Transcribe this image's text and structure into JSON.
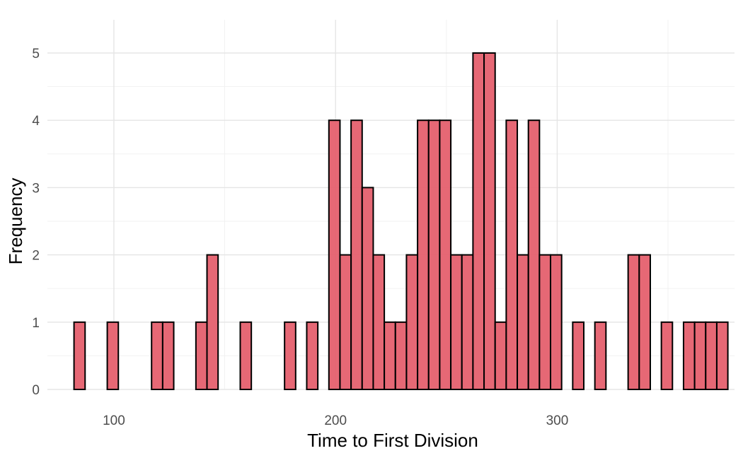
{
  "chart_data": {
    "type": "bar",
    "subtype": "histogram",
    "title": "",
    "xlabel": "Time to First Division",
    "ylabel": "Frequency",
    "xlim": [
      70,
      380
    ],
    "ylim": [
      0,
      5
    ],
    "x_ticks": [
      100,
      200,
      300
    ],
    "y_ticks": [
      0,
      1,
      2,
      3,
      4,
      5
    ],
    "bin_start": 82,
    "bin_width": 5,
    "bins": [
      {
        "x": 84.5,
        "count": 1
      },
      {
        "x": 89.5,
        "count": 0
      },
      {
        "x": 94.5,
        "count": 0
      },
      {
        "x": 99.5,
        "count": 1
      },
      {
        "x": 104.5,
        "count": 0
      },
      {
        "x": 109.5,
        "count": 0
      },
      {
        "x": 114.5,
        "count": 0
      },
      {
        "x": 119.5,
        "count": 1
      },
      {
        "x": 124.5,
        "count": 1
      },
      {
        "x": 129.5,
        "count": 0
      },
      {
        "x": 134.5,
        "count": 0
      },
      {
        "x": 139.5,
        "count": 1
      },
      {
        "x": 144.5,
        "count": 2
      },
      {
        "x": 149.5,
        "count": 0
      },
      {
        "x": 154.5,
        "count": 0
      },
      {
        "x": 159.5,
        "count": 1
      },
      {
        "x": 164.5,
        "count": 0
      },
      {
        "x": 169.5,
        "count": 0
      },
      {
        "x": 174.5,
        "count": 0
      },
      {
        "x": 179.5,
        "count": 1
      },
      {
        "x": 184.5,
        "count": 0
      },
      {
        "x": 189.5,
        "count": 1
      },
      {
        "x": 194.5,
        "count": 0
      },
      {
        "x": 199.5,
        "count": 4
      },
      {
        "x": 204.5,
        "count": 2
      },
      {
        "x": 209.5,
        "count": 4
      },
      {
        "x": 214.5,
        "count": 3
      },
      {
        "x": 219.5,
        "count": 2
      },
      {
        "x": 224.5,
        "count": 1
      },
      {
        "x": 229.5,
        "count": 1
      },
      {
        "x": 234.5,
        "count": 2
      },
      {
        "x": 239.5,
        "count": 4
      },
      {
        "x": 244.5,
        "count": 4
      },
      {
        "x": 249.5,
        "count": 4
      },
      {
        "x": 254.5,
        "count": 2
      },
      {
        "x": 259.5,
        "count": 2
      },
      {
        "x": 264.5,
        "count": 5
      },
      {
        "x": 269.5,
        "count": 5
      },
      {
        "x": 274.5,
        "count": 1
      },
      {
        "x": 279.5,
        "count": 4
      },
      {
        "x": 284.5,
        "count": 2
      },
      {
        "x": 289.5,
        "count": 4
      },
      {
        "x": 294.5,
        "count": 2
      },
      {
        "x": 299.5,
        "count": 2
      },
      {
        "x": 304.5,
        "count": 0
      },
      {
        "x": 309.5,
        "count": 1
      },
      {
        "x": 314.5,
        "count": 0
      },
      {
        "x": 319.5,
        "count": 1
      },
      {
        "x": 324.5,
        "count": 0
      },
      {
        "x": 329.5,
        "count": 0
      },
      {
        "x": 334.5,
        "count": 2
      },
      {
        "x": 339.5,
        "count": 2
      },
      {
        "x": 344.5,
        "count": 0
      },
      {
        "x": 349.5,
        "count": 1
      },
      {
        "x": 354.5,
        "count": 0
      },
      {
        "x": 359.5,
        "count": 1
      },
      {
        "x": 364.5,
        "count": 1
      },
      {
        "x": 369.5,
        "count": 1
      },
      {
        "x": 374.5,
        "count": 1
      }
    ],
    "grid": true,
    "legend": "none",
    "colors": {
      "fill": "#e5606e",
      "stroke": "#000000",
      "grid": "#e5e5e5",
      "background": "#ffffff"
    }
  }
}
